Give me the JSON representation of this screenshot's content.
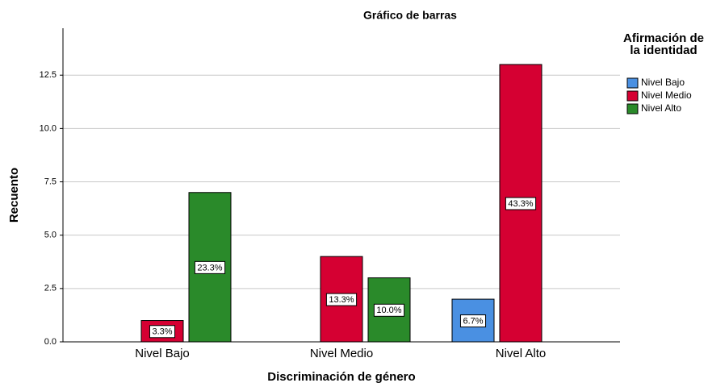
{
  "chart_data": {
    "type": "bar",
    "title": "Gráfico de barras",
    "x_label": "Discriminación de género",
    "y_label": "Recuento",
    "legend_title": "Afirmación de la identidad",
    "categories": [
      "Nivel Bajo",
      "Nivel Medio",
      "Nivel Alto"
    ],
    "series": [
      {
        "name": "Nivel Bajo",
        "color": "#4a90e2",
        "values": [
          null,
          null,
          2
        ],
        "value_labels": [
          null,
          null,
          "6.7%"
        ]
      },
      {
        "name": "Nivel Medio",
        "color": "#d50032",
        "values": [
          1,
          4,
          13
        ],
        "value_labels": [
          "3.3%",
          "13.3%",
          "43.3%"
        ]
      },
      {
        "name": "Nivel Alto",
        "color": "#2a8a2a",
        "values": [
          7,
          3,
          null
        ],
        "value_labels": [
          "23.3%",
          "10.0%",
          null
        ]
      }
    ],
    "ylim": [
      0,
      14.7
    ],
    "yticks": [
      {
        "value": 0,
        "label": "0.0"
      },
      {
        "value": 2.5,
        "label": "2.5"
      },
      {
        "value": 5,
        "label": "5.0"
      },
      {
        "value": 7.5,
        "label": "7.5"
      },
      {
        "value": 10,
        "label": "10.0"
      },
      {
        "value": 12.5,
        "label": "12.5"
      }
    ],
    "grid": true,
    "legend": "right"
  }
}
